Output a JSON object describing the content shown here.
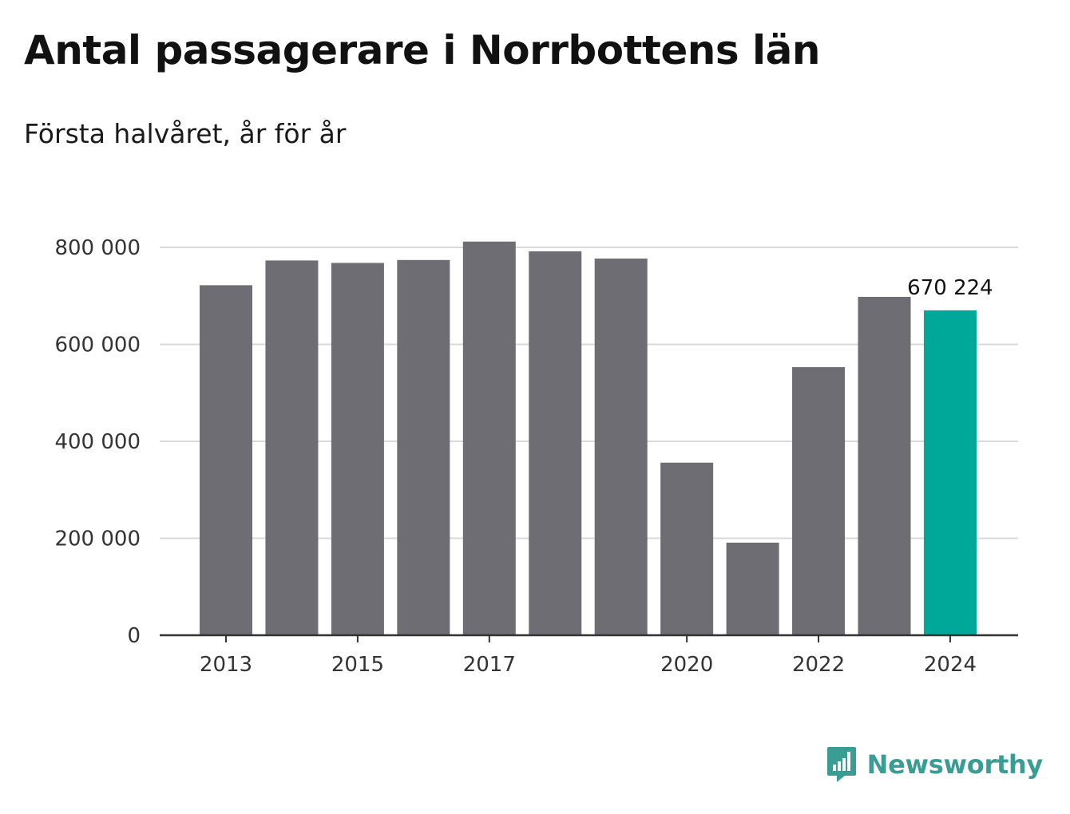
{
  "header": {
    "title": "Antal passagerare i Norrbottens län",
    "subtitle": "Första halvåret, år för år"
  },
  "brand": {
    "name": "Newsworthy",
    "icon": "bar-chart-speech-bubble-icon",
    "color": "#3a9d94"
  },
  "colors": {
    "bar": "#6e6d74",
    "highlight": "#00a89a",
    "grid": "#d9d9d9",
    "axis": "#333333"
  },
  "chart_data": {
    "type": "bar",
    "title": "Antal passagerare i Norrbottens län",
    "subtitle": "Första halvåret, år för år",
    "xlabel": "",
    "ylabel": "",
    "categories": [
      "2013",
      "2014",
      "2015",
      "2016",
      "2017",
      "2018",
      "2019",
      "2020",
      "2021",
      "2022",
      "2023",
      "2024"
    ],
    "values": [
      722000,
      773000,
      768000,
      774000,
      812000,
      792000,
      777000,
      356000,
      191000,
      553000,
      698000,
      670224
    ],
    "x_tick_labels": [
      "2013",
      "",
      "2015",
      "",
      "2017",
      "",
      "",
      "2020",
      "",
      "2022",
      "",
      "2024"
    ],
    "y_ticks": [
      0,
      200000,
      400000,
      600000,
      800000
    ],
    "y_tick_labels": [
      "0",
      "200 000",
      "400 000",
      "600 000",
      "800 000"
    ],
    "ylim": [
      0,
      800000
    ],
    "grid": true,
    "highlight_index": 11,
    "annotations": [
      {
        "index": 11,
        "text": "670 224"
      }
    ]
  }
}
